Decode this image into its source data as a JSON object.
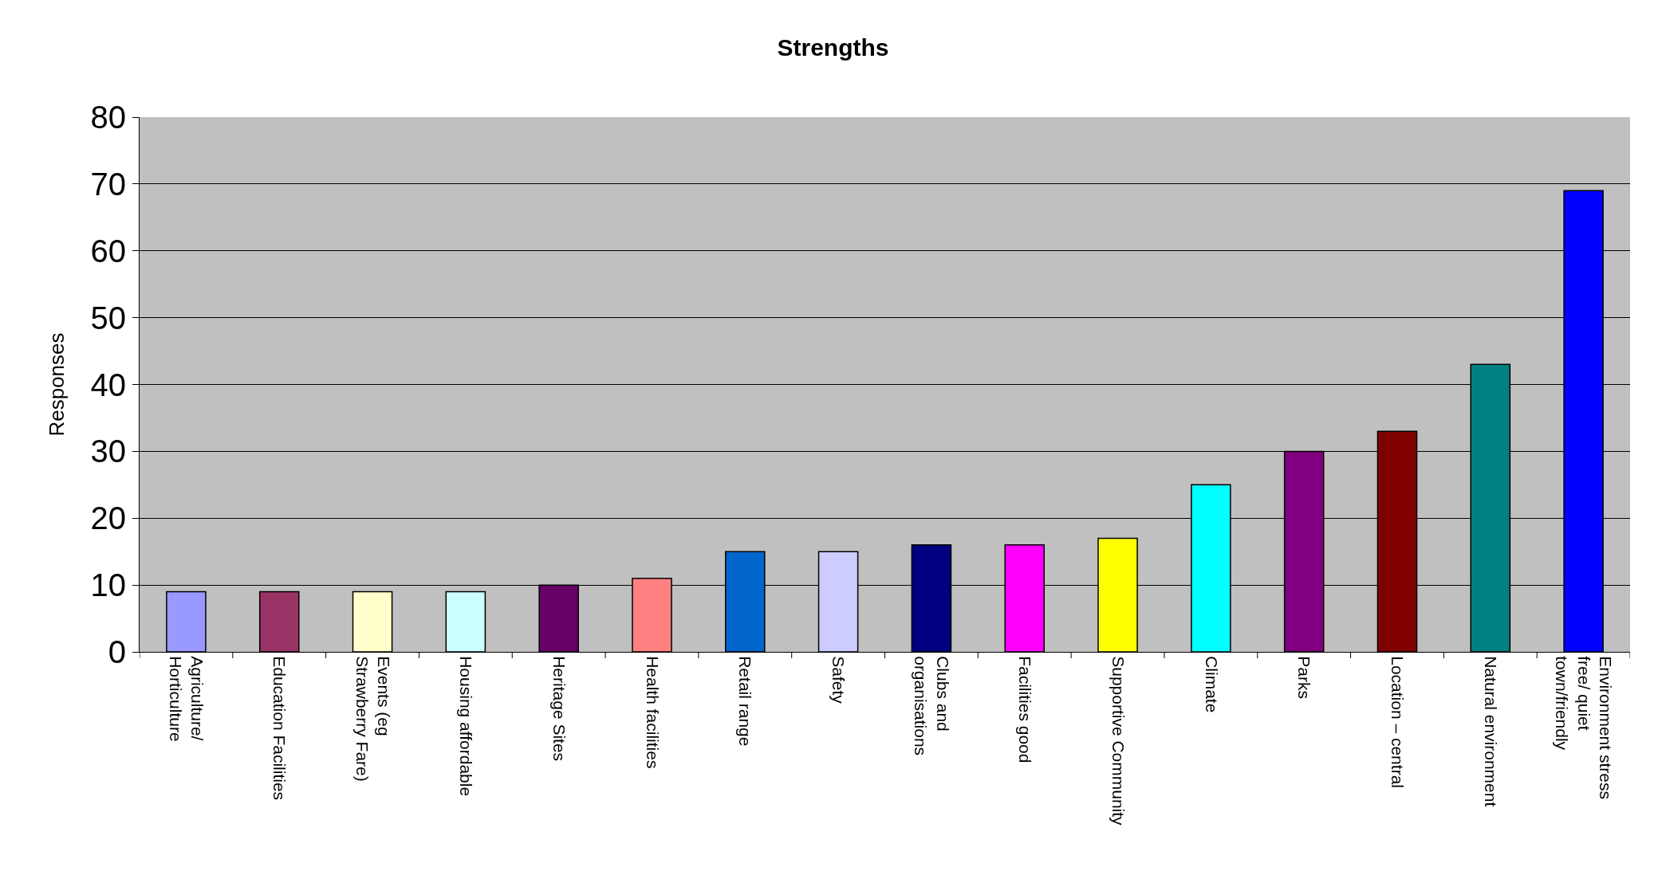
{
  "chart_data": {
    "type": "bar",
    "title": "Strengths",
    "ylabel": "Responses",
    "categories": [
      "Agriculture/ Horticulture",
      "Education Facilities",
      "Events (eg Strawberry Fare)",
      "Housing affordable",
      "Heritage Sites",
      "Health facilities",
      "Retail range",
      "Safety",
      "Clubs and organisations",
      "Facilities good",
      "Supportive Community",
      "Climate",
      "Parks",
      "Location – central",
      "Natural environment",
      "Environment stress free/ quiet town/friendly"
    ],
    "values": [
      9,
      9,
      9,
      9,
      10,
      11,
      15,
      15,
      16,
      16,
      17,
      25,
      30,
      33,
      43,
      69
    ],
    "colors": [
      "#9999ff",
      "#993366",
      "#ffffcc",
      "#ccffff",
      "#660066",
      "#ff8080",
      "#0066cc",
      "#ccccff",
      "#000080",
      "#ff00ff",
      "#ffff00",
      "#00ffff",
      "#800080",
      "#800000",
      "#008080",
      "#0000ff"
    ],
    "ylim": [
      0,
      80
    ],
    "yticks": [
      0,
      10,
      20,
      30,
      40,
      50,
      60,
      70,
      80
    ],
    "grid": "y"
  }
}
